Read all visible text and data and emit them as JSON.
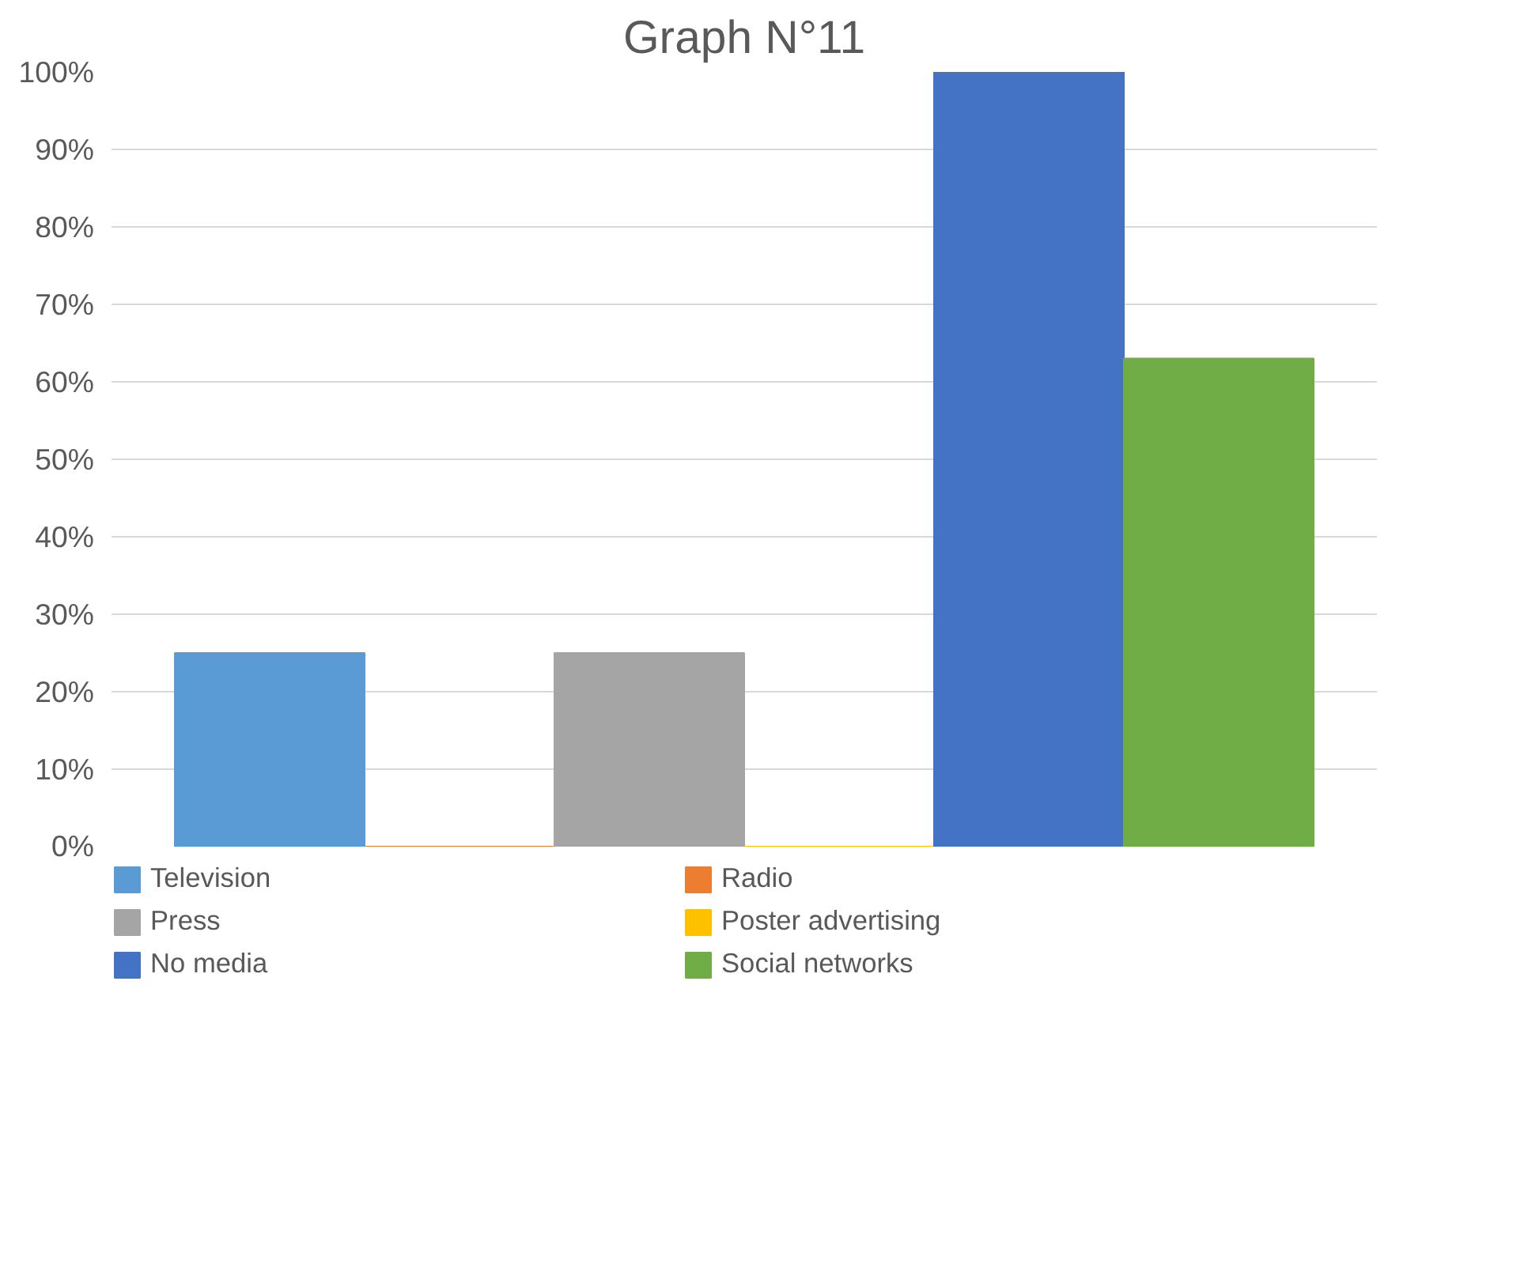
{
  "chart_data": {
    "type": "bar",
    "title": "Graph N°11",
    "categories": [
      null
    ],
    "series": [
      {
        "name": "Television",
        "color": "#5b9bd5",
        "values": [
          25
        ]
      },
      {
        "name": "Radio",
        "color": "#ed7d31",
        "values": [
          0
        ]
      },
      {
        "name": "Press",
        "color": "#a5a5a5",
        "values": [
          25
        ]
      },
      {
        "name": "Poster advertising",
        "color": "#ffc000",
        "values": [
          0
        ]
      },
      {
        "name": "No media",
        "color": "#4472c4",
        "values": [
          100
        ]
      },
      {
        "name": "Social networks",
        "color": "#70ad47",
        "values": [
          63
        ]
      }
    ],
    "ylim": [
      0,
      100
    ],
    "yticks": [
      {
        "value": 0,
        "label": "0%"
      },
      {
        "value": 10,
        "label": "10%"
      },
      {
        "value": 20,
        "label": "20%"
      },
      {
        "value": 30,
        "label": "30%"
      },
      {
        "value": 40,
        "label": "40%"
      },
      {
        "value": 50,
        "label": "50%"
      },
      {
        "value": 60,
        "label": "60%"
      },
      {
        "value": 70,
        "label": "70%"
      },
      {
        "value": 80,
        "label": "80%"
      },
      {
        "value": 90,
        "label": "90%"
      },
      {
        "value": 100,
        "label": "100%"
      }
    ],
    "grid": "y",
    "legend": "bottom"
  }
}
